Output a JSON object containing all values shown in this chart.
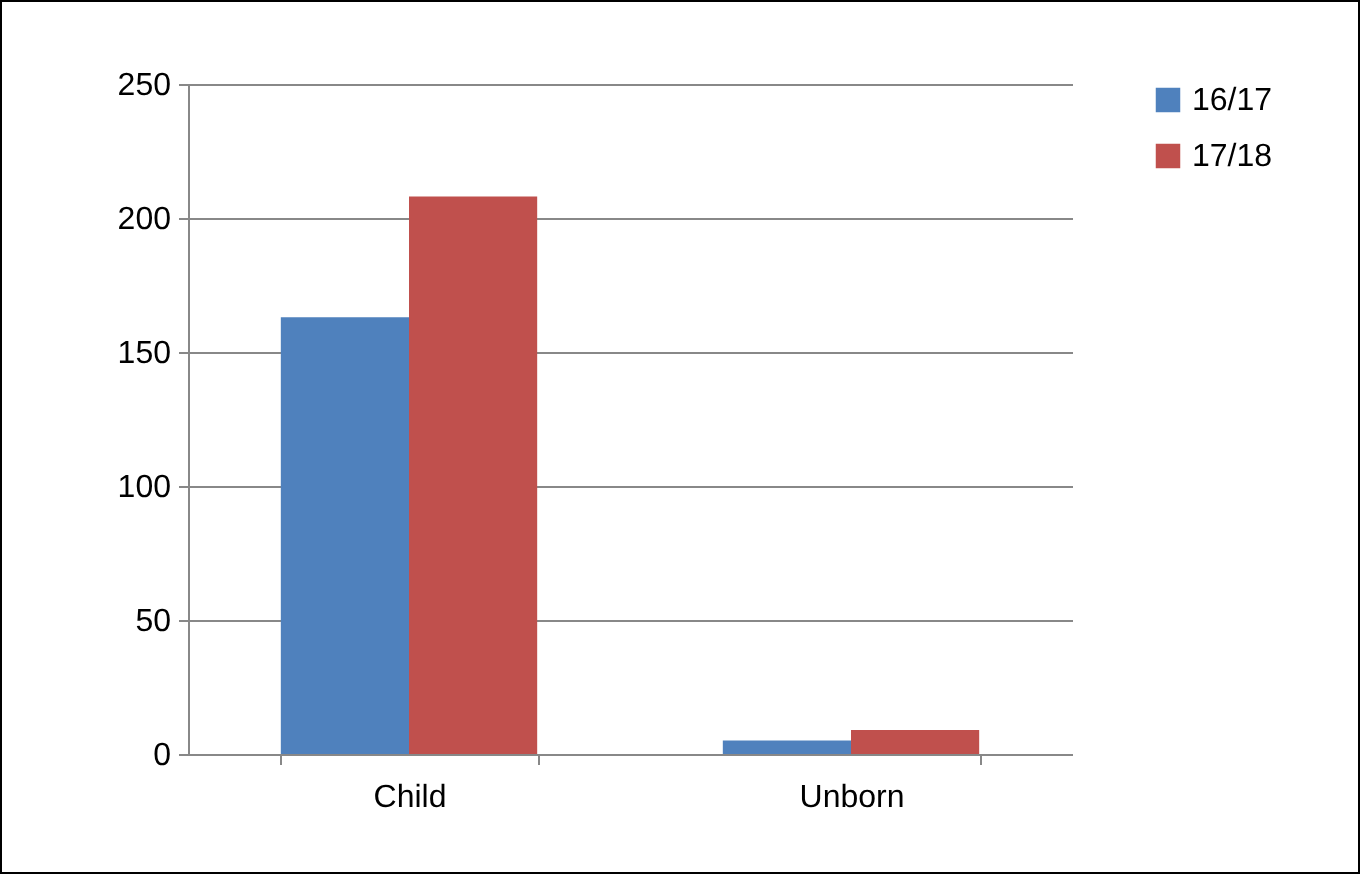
{
  "chart_data": {
    "type": "bar",
    "categories": [
      "Child",
      "Unborn"
    ],
    "series": [
      {
        "name": "16/17",
        "color": "#4f81bd",
        "values": [
          163,
          5
        ]
      },
      {
        "name": "17/18",
        "color": "#c0504d",
        "values": [
          208,
          9
        ]
      }
    ],
    "ylim": [
      0,
      250
    ],
    "yticks": [
      0,
      50,
      100,
      150,
      200,
      250
    ],
    "grid": "y",
    "legend": "right"
  }
}
